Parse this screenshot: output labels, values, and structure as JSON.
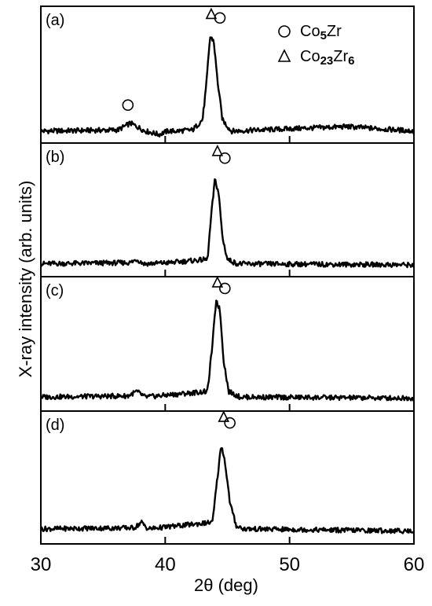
{
  "chart_data": {
    "type": "line",
    "xlabel": "2θ (deg)",
    "ylabel": "X-ray intensity (arb. units)",
    "xlim": [
      30,
      60
    ],
    "x_ticks": [
      "30",
      "40",
      "50",
      "60"
    ],
    "grid": false,
    "legend_position": "top-right",
    "legend": [
      {
        "marker": "circle",
        "label_main": "Co",
        "label_sub1": "5",
        "label_tail": "Zr",
        "label_sub2": ""
      },
      {
        "marker": "triangle",
        "label_main": "Co",
        "label_sub1": "23",
        "label_tail": "Zr",
        "label_sub2": "6"
      }
    ],
    "panels": [
      {
        "label": "(a)",
        "series": [
          {
            "points": [
              [
                30,
                0.05
              ],
              [
                36.2,
                0.06
              ],
              [
                37.2,
                0.12
              ],
              [
                38.4,
                0.05
              ],
              [
                39.5,
                0.02
              ],
              [
                40.2,
                0.05
              ],
              [
                40.8,
                0.05
              ],
              [
                42.2,
                0.06
              ],
              [
                43.0,
                0.15
              ],
              [
                43.3,
                0.45
              ],
              [
                43.6,
                0.88
              ],
              [
                43.9,
                0.85
              ],
              [
                44.2,
                0.5
              ],
              [
                44.6,
                0.15
              ],
              [
                45.3,
                0.05
              ],
              [
                54.6,
                0.09
              ],
              [
                60,
                0.05
              ]
            ]
          }
        ],
        "markers": [
          {
            "type": "triangle",
            "x": 43.7,
            "y": 1.08
          },
          {
            "type": "circle",
            "x": 44.4,
            "y": 1.05
          },
          {
            "type": "circle",
            "x": 37.0,
            "y": 0.28
          }
        ]
      },
      {
        "label": "(b)",
        "series": [
          {
            "points": [
              [
                30,
                0.06
              ],
              [
                37.2,
                0.07
              ],
              [
                37.7,
                0.1
              ],
              [
                38.3,
                0.06
              ],
              [
                40.3,
                0.07
              ],
              [
                43.4,
                0.1
              ],
              [
                43.7,
                0.5
              ],
              [
                44.0,
                0.83
              ],
              [
                44.3,
                0.7
              ],
              [
                44.6,
                0.3
              ],
              [
                45.0,
                0.1
              ],
              [
                45.8,
                0.06
              ],
              [
                60,
                0.05
              ]
            ]
          }
        ],
        "markers": [
          {
            "type": "triangle",
            "x": 44.2,
            "y": 1.08
          },
          {
            "type": "circle",
            "x": 44.8,
            "y": 1.02
          }
        ]
      },
      {
        "label": "(c)",
        "series": [
          {
            "points": [
              [
                30,
                0.07
              ],
              [
                37.0,
                0.08
              ],
              [
                37.7,
                0.12
              ],
              [
                38.4,
                0.07
              ],
              [
                43.4,
                0.12
              ],
              [
                43.8,
                0.55
              ],
              [
                44.1,
                0.95
              ],
              [
                44.4,
                0.85
              ],
              [
                44.7,
                0.4
              ],
              [
                45.1,
                0.12
              ],
              [
                46.0,
                0.07
              ],
              [
                60,
                0.06
              ]
            ]
          }
        ],
        "markers": [
          {
            "type": "triangle",
            "x": 44.2,
            "y": 1.1
          },
          {
            "type": "circle",
            "x": 44.8,
            "y": 1.05
          }
        ]
      },
      {
        "label": "(d)",
        "series": [
          {
            "points": [
              [
                30,
                0.08
              ],
              [
                37.5,
                0.09
              ],
              [
                38.1,
                0.14
              ],
              [
                38.6,
                0.08
              ],
              [
                43.8,
                0.14
              ],
              [
                44.2,
                0.55
              ],
              [
                44.5,
                0.85
              ],
              [
                44.8,
                0.7
              ],
              [
                45.2,
                0.32
              ],
              [
                45.7,
                0.11
              ],
              [
                46.3,
                0.08
              ],
              [
                60,
                0.06
              ]
            ]
          }
        ],
        "markers": [
          {
            "type": "triangle",
            "x": 44.7,
            "y": 1.1
          },
          {
            "type": "circle",
            "x": 45.2,
            "y": 1.05
          }
        ]
      }
    ]
  }
}
